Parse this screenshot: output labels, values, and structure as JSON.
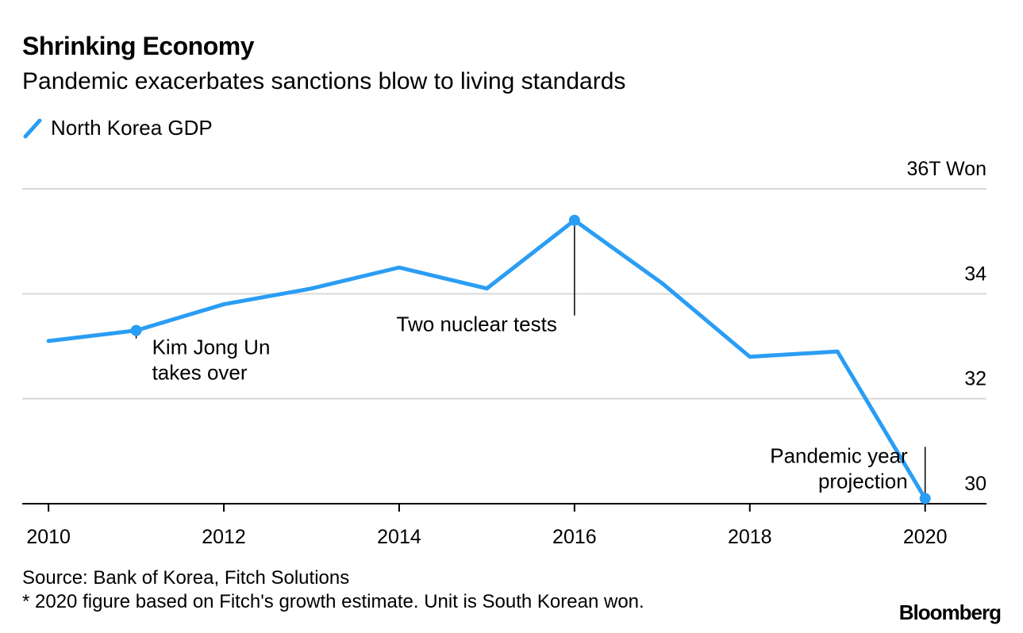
{
  "header": {
    "title": "Shrinking Economy",
    "subtitle": "Pandemic exacerbates sanctions blow to living standards"
  },
  "legend": {
    "label": "North Korea GDP",
    "color": "#2a9df4"
  },
  "footer": {
    "source": "Source: Bank of Korea, Fitch Solutions",
    "note": "* 2020 figure based on Fitch's growth estimate. Unit is South Korean won.",
    "brand": "Bloomberg"
  },
  "chart_data": {
    "type": "line",
    "title": "Shrinking Economy",
    "subtitle": "Pandemic exacerbates sanctions blow to living standards",
    "xlabel": "",
    "ylabel": "",
    "grid": true,
    "legend_position": "top-left",
    "series": [
      {
        "name": "North Korea GDP",
        "color": "#2a9df4",
        "x": [
          2010,
          2011,
          2012,
          2013,
          2014,
          2015,
          2016,
          2017,
          2018,
          2019,
          2020
        ],
        "values": [
          33.1,
          33.3,
          33.8,
          34.1,
          34.5,
          34.1,
          35.4,
          34.2,
          32.8,
          32.9,
          30.1
        ]
      }
    ],
    "x_ticks": [
      "2010",
      "2012",
      "2014",
      "2016",
      "2018",
      "2020"
    ],
    "y_ticks": [
      {
        "value": 36,
        "label": "36T Won"
      },
      {
        "value": 34,
        "label": "34"
      },
      {
        "value": 32,
        "label": "32"
      },
      {
        "value": 30,
        "label": "30"
      }
    ],
    "xlim": [
      2009.7,
      2020.7
    ],
    "ylim": [
      30,
      36
    ],
    "annotations": [
      {
        "x": 2011,
        "y": 33.3,
        "lines": [
          "Kim Jong Un",
          "takes over"
        ],
        "side": "below-right"
      },
      {
        "x": 2016,
        "y": 35.4,
        "lines": [
          "Two nuclear tests"
        ],
        "side": "below-left"
      },
      {
        "x": 2020,
        "y": 30.1,
        "lines": [
          "Pandemic year",
          "projection"
        ],
        "side": "above-left"
      }
    ]
  }
}
